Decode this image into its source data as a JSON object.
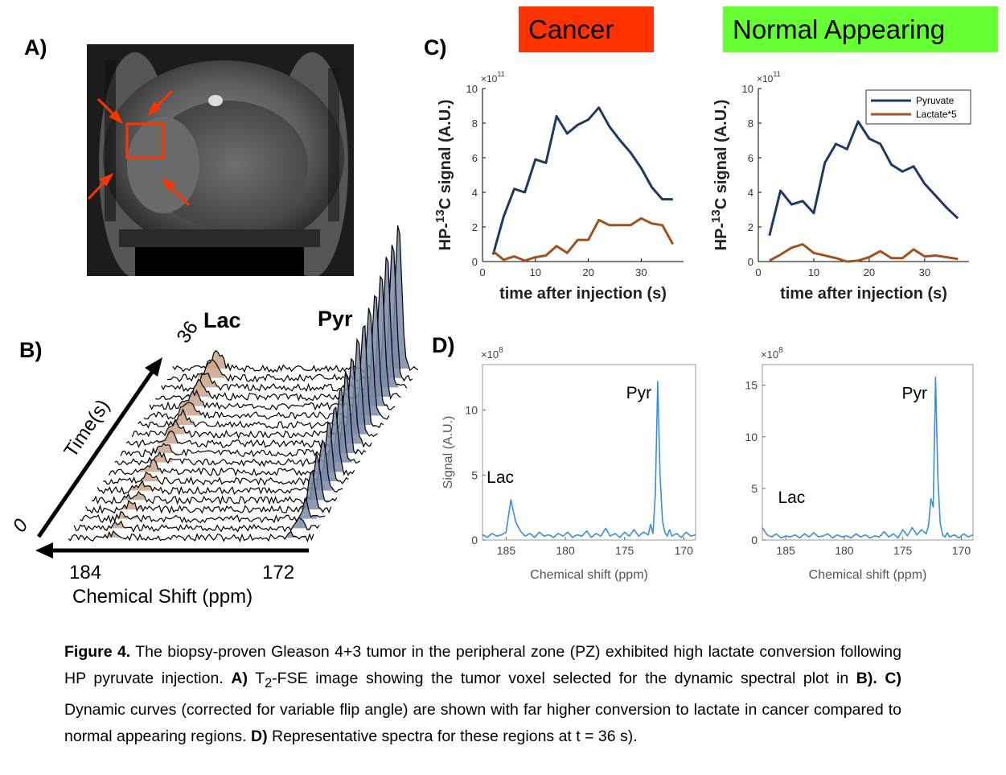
{
  "panels": {
    "a": "A)",
    "b": "B)",
    "c": "C)",
    "d": "D)"
  },
  "regions": {
    "cancer": {
      "label": "Cancer",
      "color": "#ff3300"
    },
    "normal": {
      "label": "Normal Appearing",
      "color": "#66ff33"
    }
  },
  "stack": {
    "lac_label": "Lac",
    "pyr_label": "Pyr",
    "time_label": "Time(s)",
    "time_start": "0",
    "time_end": "36",
    "ppm_left": "184",
    "ppm_right": "172",
    "xlabel": "Chemical Shift (ppm)",
    "lac_color": "#c8a58e",
    "pyr_color": "#7a8aa8"
  },
  "chart_data": [
    {
      "type": "line",
      "id": "dyn_cancer",
      "title": "",
      "xlabel": "time after injection (s)",
      "ylabel": "HP-13C signal (A.U.)",
      "exponent": "×10",
      "exponent_power": "11",
      "xlim": [
        0,
        38
      ],
      "ylim": [
        0,
        10
      ],
      "xticks": [
        0,
        10,
        20,
        30
      ],
      "yticks": [
        0,
        2,
        4,
        6,
        8,
        10
      ],
      "series": [
        {
          "name": "Pyruvate",
          "color": "#1f3a60",
          "x": [
            2,
            4,
            6,
            8,
            10,
            12,
            14,
            16,
            18,
            20,
            22,
            24,
            26,
            28,
            30,
            32,
            34,
            36
          ],
          "values": [
            0.4,
            2.6,
            4.2,
            4.0,
            5.9,
            5.7,
            8.4,
            7.4,
            7.9,
            8.2,
            8.9,
            7.8,
            7.0,
            6.3,
            5.4,
            4.3,
            3.6,
            3.6
          ]
        },
        {
          "name": "Lactate*5",
          "color": "#a0521e",
          "x": [
            2,
            4,
            6,
            8,
            10,
            12,
            14,
            16,
            18,
            20,
            22,
            24,
            26,
            28,
            30,
            32,
            34,
            36
          ],
          "values": [
            0.6,
            0.1,
            0.3,
            0.05,
            0.25,
            0.35,
            0.9,
            0.5,
            1.25,
            1.25,
            2.4,
            2.1,
            2.1,
            2.1,
            2.5,
            2.2,
            2.1,
            1.0
          ]
        }
      ]
    },
    {
      "type": "line",
      "id": "dyn_normal",
      "title": "",
      "xlabel": "time after injection (s)",
      "ylabel": "HP-13C signal (A.U.)",
      "exponent": "×10",
      "exponent_power": "11",
      "xlim": [
        0,
        38
      ],
      "ylim": [
        0,
        10
      ],
      "xticks": [
        0,
        10,
        20,
        30
      ],
      "yticks": [
        0,
        2,
        4,
        6,
        8,
        10
      ],
      "legend": "top-right",
      "series": [
        {
          "name": "Pyruvate",
          "color": "#1f3a60",
          "x": [
            2,
            4,
            6,
            8,
            10,
            12,
            14,
            16,
            18,
            20,
            22,
            24,
            26,
            28,
            30,
            32,
            34,
            36
          ],
          "values": [
            1.5,
            4.1,
            3.3,
            3.5,
            2.8,
            5.7,
            6.8,
            6.5,
            8.1,
            7.1,
            6.8,
            5.6,
            5.2,
            5.5,
            4.5,
            3.8,
            3.1,
            2.5
          ]
        },
        {
          "name": "Lactate*5",
          "color": "#a0521e",
          "x": [
            2,
            4,
            6,
            8,
            10,
            12,
            14,
            16,
            18,
            20,
            22,
            24,
            26,
            28,
            30,
            32,
            34,
            36
          ],
          "values": [
            0.05,
            0.4,
            0.8,
            1.0,
            0.5,
            0.35,
            0.2,
            0.0,
            0.05,
            0.25,
            0.6,
            0.2,
            0.2,
            0.7,
            0.3,
            0.35,
            0.25,
            0.15
          ]
        }
      ]
    },
    {
      "type": "line",
      "id": "spec_cancer",
      "xlabel": "Chemical shift (ppm)",
      "ylabel": "Signal (A.U.)",
      "exponent": "×10",
      "exponent_power": "8",
      "xlim": [
        187,
        169
      ],
      "ylim": [
        0,
        13.5
      ],
      "xticks": [
        185,
        180,
        175,
        170
      ],
      "yticks": [
        0,
        5,
        10
      ],
      "annotations": [
        {
          "text": "Lac",
          "x": 185.5,
          "y": 4.4
        },
        {
          "text": "Pyr",
          "x": 173.8,
          "y": 10.9
        }
      ],
      "series": [
        {
          "name": "Spectrum",
          "color": "#3a8fd6",
          "x": [
            187,
            186.6,
            186.2,
            185.8,
            185.4,
            185.0,
            184.6,
            184.2,
            183.8,
            183.4,
            183.0,
            182.6,
            182.2,
            181.8,
            181.4,
            181.0,
            180.6,
            180.2,
            179.8,
            179.4,
            179.0,
            178.6,
            178.2,
            177.8,
            177.4,
            177.0,
            176.6,
            176.2,
            175.8,
            175.4,
            175.0,
            174.6,
            174.2,
            173.8,
            173.4,
            173.0,
            172.8,
            172.6,
            172.4,
            172.2,
            172.0,
            171.8,
            171.6,
            171.4,
            171.2,
            171.0,
            170.6,
            170.2,
            169.8,
            169.4,
            169.0
          ],
          "values": [
            0.4,
            0.2,
            0.5,
            0.3,
            0.4,
            0.6,
            3.1,
            1.4,
            0.7,
            0.3,
            0.5,
            0.2,
            0.6,
            0.3,
            0.4,
            0.2,
            0.5,
            0.3,
            0.6,
            0.2,
            0.4,
            0.3,
            0.7,
            0.2,
            0.5,
            0.3,
            0.9,
            0.3,
            0.5,
            0.2,
            0.6,
            0.3,
            0.8,
            0.3,
            0.6,
            0.4,
            1.2,
            0.5,
            3.5,
            12.2,
            5.0,
            1.5,
            0.6,
            0.3,
            0.8,
            0.3,
            0.5,
            0.2,
            0.6,
            0.3,
            0.4
          ]
        }
      ]
    },
    {
      "type": "line",
      "id": "spec_normal",
      "xlabel": "Chemical shift (ppm)",
      "ylabel": "",
      "exponent": "×10",
      "exponent_power": "8",
      "xlim": [
        187,
        169
      ],
      "ylim": [
        0,
        17
      ],
      "xticks": [
        185,
        180,
        175,
        170
      ],
      "yticks": [
        0,
        5,
        10,
        15
      ],
      "annotations": [
        {
          "text": "Lac",
          "x": 184.5,
          "y": 3.6
        },
        {
          "text": "Pyr",
          "x": 174.0,
          "y": 13.7
        }
      ],
      "series": [
        {
          "name": "Spectrum",
          "color": "#3a8fd6",
          "x": [
            187,
            186.6,
            186.2,
            185.8,
            185.4,
            185.0,
            184.6,
            184.2,
            183.8,
            183.4,
            183.0,
            182.6,
            182.2,
            181.8,
            181.4,
            181.0,
            180.6,
            180.2,
            179.8,
            179.4,
            179.0,
            178.6,
            178.2,
            177.8,
            177.4,
            177.0,
            176.6,
            176.2,
            175.8,
            175.4,
            175.0,
            174.6,
            174.2,
            173.8,
            173.4,
            173.0,
            172.8,
            172.6,
            172.4,
            172.2,
            172.0,
            171.8,
            171.6,
            171.4,
            171.2,
            171.0,
            170.6,
            170.2,
            169.8,
            169.4,
            169.0
          ],
          "values": [
            1.2,
            0.5,
            0.3,
            0.6,
            0.2,
            0.4,
            0.3,
            0.5,
            0.2,
            0.6,
            0.3,
            0.7,
            0.3,
            0.4,
            0.6,
            0.2,
            0.5,
            0.3,
            0.4,
            0.2,
            0.6,
            0.3,
            0.5,
            0.2,
            0.4,
            0.3,
            0.8,
            0.3,
            0.6,
            0.2,
            1.0,
            0.4,
            1.2,
            0.5,
            1.0,
            0.6,
            1.4,
            4.0,
            3.2,
            15.8,
            6.0,
            1.6,
            0.5,
            0.3,
            0.7,
            0.3,
            0.5,
            0.2,
            0.6,
            0.3,
            0.5
          ]
        }
      ]
    }
  ],
  "caption": {
    "fig": "Figure 4.",
    "p1": " The biopsy-proven Gleason 4+3 tumor in the peripheral zone (PZ) exhibited high lactate conversion following HP pyruvate injection. ",
    "a": "A)",
    "p2": " T",
    "sub": "2",
    "p3": "-FSE image showing the tumor voxel selected for the dynamic spectral plot in ",
    "b": "B).",
    "p4": " ",
    "c": "C)",
    "p5": " Dynamic curves (corrected for variable flip angle) are shown with far higher conversion to lactate in cancer compared to normal appearing regions. ",
    "d": "D)",
    "p6": " Representative spectra for these regions at t = 36 s)."
  }
}
